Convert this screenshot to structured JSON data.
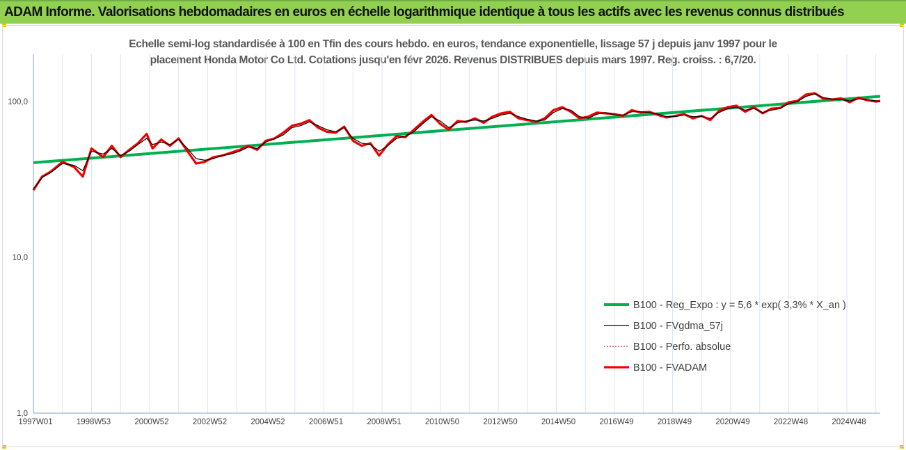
{
  "header": {
    "title": "ADAM Informe. Valorisations hebdomadaires en euros en échelle logarithmique identique à tous les actifs avec les revenus connus distribués"
  },
  "colors": {
    "banner": "#92d050",
    "accent_yellow": "#f0c000",
    "trend": "#00b050",
    "smoothed": "#000000",
    "perf": "#c00000",
    "adam": "#ff0000",
    "grid": "#dde6f0",
    "axis": "#7fa6d6"
  },
  "chart_data": {
    "type": "line",
    "title_lines": [
      "Echelle semi-log standardisée à 100 en Tfin des cours hebdo. en euros, tendance exponentielle, lissage 57 j depuis janv 1997 pour le",
      "placement Honda Motor Co Ltd. Cotations jusqu'en févr 2026. Revenus DISTRIBUES depuis mars 1997.  Reg. croiss. : 6,7/20."
    ],
    "y_scale": "log",
    "ylim": [
      1,
      200
    ],
    "y_ticks": [
      {
        "value": 1,
        "label": "1,0"
      },
      {
        "value": 10,
        "label": "10,0"
      },
      {
        "value": 100,
        "label": "100,0"
      }
    ],
    "x_range": [
      1997.0,
      2026.15
    ],
    "x_ticks": [
      {
        "value": 1997.0,
        "label": "1997W01"
      },
      {
        "value": 1999.0,
        "label": "1998W53"
      },
      {
        "value": 2001.0,
        "label": "2000W52"
      },
      {
        "value": 2003.0,
        "label": "2002W52"
      },
      {
        "value": 2005.0,
        "label": "2004W52"
      },
      {
        "value": 2007.0,
        "label": "2006W51"
      },
      {
        "value": 2009.0,
        "label": "2008W51"
      },
      {
        "value": 2011.0,
        "label": "2010W50"
      },
      {
        "value": 2013.0,
        "label": "2012W50"
      },
      {
        "value": 2015.0,
        "label": "2014W50"
      },
      {
        "value": 2017.0,
        "label": "2016W49"
      },
      {
        "value": 2019.0,
        "label": "2018W49"
      },
      {
        "value": 2021.0,
        "label": "2020W49"
      },
      {
        "value": 2023.0,
        "label": "2022W48"
      },
      {
        "value": 2025.0,
        "label": "2024W48"
      }
    ],
    "grid": "vertical",
    "legend_position": "bottom-right",
    "series": [
      {
        "name": "B100 - Reg_Expo : y = 5,6 * exp( 3,3% *  X_an )",
        "style": "trend",
        "x": [
          1997.0,
          2026.15
        ],
        "y": [
          40.5,
          108.0
        ]
      },
      {
        "name": "B100 - FVgdma_57j",
        "style": "smoothed",
        "x": [
          1997.0,
          1997.3,
          1997.6,
          1998.0,
          1998.4,
          1998.7,
          1999.0,
          1999.4,
          1999.7,
          2000.0,
          2000.3,
          2000.6,
          2000.9,
          2001.1,
          2001.4,
          2001.7,
          2002.0,
          2002.3,
          2002.6,
          2002.9,
          2003.2,
          2003.5,
          2003.8,
          2004.1,
          2004.4,
          2004.7,
          2005.0,
          2005.3,
          2005.6,
          2005.9,
          2006.2,
          2006.5,
          2006.8,
          2007.1,
          2007.4,
          2007.7,
          2008.0,
          2008.3,
          2008.6,
          2008.9,
          2009.2,
          2009.5,
          2009.8,
          2010.1,
          2010.4,
          2010.7,
          2011.0,
          2011.3,
          2011.6,
          2011.9,
          2012.2,
          2012.5,
          2012.8,
          2013.1,
          2013.4,
          2013.7,
          2014.0,
          2014.3,
          2014.6,
          2014.9,
          2015.2,
          2015.5,
          2015.8,
          2016.1,
          2016.4,
          2016.7,
          2017.0,
          2017.3,
          2017.6,
          2017.9,
          2018.2,
          2018.5,
          2018.8,
          2019.1,
          2019.4,
          2019.7,
          2020.0,
          2020.3,
          2020.6,
          2020.9,
          2021.2,
          2021.5,
          2021.8,
          2022.1,
          2022.4,
          2022.7,
          2023.0,
          2023.3,
          2023.6,
          2023.9,
          2024.2,
          2024.5,
          2024.8,
          2025.1,
          2025.4,
          2025.7,
          2026.0,
          2026.15
        ],
        "y": [
          27.5,
          32.5,
          35.0,
          40.0,
          39.0,
          36.0,
          48.0,
          46.0,
          50.0,
          45.0,
          48.0,
          53.0,
          58.0,
          53.0,
          55.0,
          53.0,
          57.0,
          50.0,
          43.0,
          42.0,
          43.0,
          45.0,
          46.0,
          48.0,
          51.0,
          50.0,
          55.0,
          57.5,
          61.0,
          68.0,
          70.0,
          74.0,
          70.0,
          66.0,
          64.0,
          68.0,
          58.0,
          54.0,
          53.0,
          48.0,
          52.0,
          58.0,
          60.0,
          64.0,
          72.0,
          80.0,
          75.0,
          68.0,
          73.0,
          75.0,
          76.0,
          75.0,
          78.0,
          82.0,
          84.0,
          80.0,
          77.0,
          75.0,
          76.0,
          85.0,
          90.0,
          88.0,
          80.0,
          78.0,
          83.0,
          85.0,
          82.0,
          82.0,
          86.0,
          86.0,
          85.0,
          83.0,
          80.0,
          80.0,
          82.0,
          80.0,
          80.0,
          78.0,
          85.0,
          90.0,
          92.0,
          88.0,
          90.0,
          85.0,
          88.0,
          90.0,
          97.0,
          100.0,
          108.0,
          112.0,
          106.0,
          104.0,
          103.0,
          101.0,
          104.0,
          103.0,
          101.0,
          100.0
        ]
      },
      {
        "name": "B100 - Perfo. absolue",
        "style": "perf",
        "x": [
          1997.0,
          1997.3,
          1997.6,
          1998.0,
          1998.4,
          1998.7,
          1999.0,
          1999.4,
          1999.7,
          2000.0,
          2000.3,
          2000.6,
          2000.9,
          2001.1,
          2001.4,
          2001.7,
          2002.0,
          2002.3,
          2002.6,
          2002.9,
          2003.2,
          2003.5,
          2003.8,
          2004.1,
          2004.4,
          2004.7,
          2005.0,
          2005.3,
          2005.6,
          2005.9,
          2006.2,
          2006.5,
          2006.8,
          2007.1,
          2007.4,
          2007.7,
          2008.0,
          2008.3,
          2008.6,
          2008.9,
          2009.2,
          2009.5,
          2009.8,
          2010.1,
          2010.4,
          2010.7,
          2011.0,
          2011.3,
          2011.6,
          2011.9,
          2012.2,
          2012.5,
          2012.8,
          2013.1,
          2013.4,
          2013.7,
          2014.0,
          2014.3,
          2014.6,
          2014.9,
          2015.2,
          2015.5,
          2015.8,
          2016.1,
          2016.4,
          2016.7,
          2017.0,
          2017.3,
          2017.6,
          2017.9,
          2018.2,
          2018.5,
          2018.8,
          2019.1,
          2019.4,
          2019.7,
          2020.0,
          2020.3,
          2020.6,
          2020.9,
          2021.2,
          2021.5,
          2021.8,
          2022.1,
          2022.4,
          2022.7,
          2023.0,
          2023.3,
          2023.6,
          2023.9,
          2024.2,
          2024.5,
          2024.8,
          2025.1,
          2025.4,
          2025.7,
          2026.0,
          2026.15
        ],
        "y": [
          27.0,
          33.0,
          35.5,
          41.0,
          38.0,
          33.0,
          50.0,
          44.0,
          52.0,
          44.0,
          49.0,
          54.0,
          62.0,
          50.0,
          57.0,
          52.0,
          58.0,
          48.0,
          40.0,
          41.0,
          44.0,
          45.0,
          47.0,
          49.0,
          52.0,
          49.0,
          56.0,
          58.0,
          63.0,
          70.0,
          72.0,
          76.0,
          68.0,
          64.0,
          63.0,
          69.0,
          56.0,
          52.0,
          54.0,
          45.0,
          53.0,
          60.0,
          59.0,
          66.0,
          74.0,
          82.0,
          72.0,
          66.0,
          75.0,
          74.0,
          78.0,
          73.0,
          80.0,
          84.0,
          86.0,
          78.0,
          76.0,
          74.0,
          78.0,
          88.0,
          92.0,
          86.0,
          78.0,
          80.0,
          85.0,
          84.0,
          83.0,
          81.0,
          88.0,
          85.0,
          86.0,
          82.0,
          79.0,
          81.0,
          83.0,
          78.0,
          81.0,
          76.0,
          87.0,
          92.0,
          94.0,
          86.0,
          92.0,
          84.0,
          90.0,
          91.0,
          99.0,
          101.0,
          111.0,
          113.0,
          104.0,
          103.0,
          105.0,
          99.0,
          106.0,
          102.0,
          100.0,
          101.0
        ]
      },
      {
        "name": "B100 - FVADAM",
        "style": "adam",
        "x": [
          1997.0,
          1997.3,
          1997.6,
          1998.0,
          1998.4,
          1998.7,
          1999.0,
          1999.4,
          1999.7,
          2000.0,
          2000.3,
          2000.6,
          2000.9,
          2001.1,
          2001.4,
          2001.7,
          2002.0,
          2002.3,
          2002.6,
          2002.9,
          2003.2,
          2003.5,
          2003.8,
          2004.1,
          2004.4,
          2004.7,
          2005.0,
          2005.3,
          2005.6,
          2005.9,
          2006.2,
          2006.5,
          2006.8,
          2007.1,
          2007.4,
          2007.7,
          2008.0,
          2008.3,
          2008.6,
          2008.9,
          2009.2,
          2009.5,
          2009.8,
          2010.1,
          2010.4,
          2010.7,
          2011.0,
          2011.3,
          2011.6,
          2011.9,
          2012.2,
          2012.5,
          2012.8,
          2013.1,
          2013.4,
          2013.7,
          2014.0,
          2014.3,
          2014.6,
          2014.9,
          2015.2,
          2015.5,
          2015.8,
          2016.1,
          2016.4,
          2016.7,
          2017.0,
          2017.3,
          2017.6,
          2017.9,
          2018.2,
          2018.5,
          2018.8,
          2019.1,
          2019.4,
          2019.7,
          2020.0,
          2020.3,
          2020.6,
          2020.9,
          2021.2,
          2021.5,
          2021.8,
          2022.1,
          2022.4,
          2022.7,
          2023.0,
          2023.3,
          2023.6,
          2023.9,
          2024.2,
          2024.5,
          2024.8,
          2025.1,
          2025.4,
          2025.7,
          2026.0,
          2026.15
        ],
        "y": [
          27.0,
          33.0,
          35.5,
          41.0,
          38.0,
          33.0,
          50.0,
          44.0,
          52.0,
          44.0,
          49.0,
          54.0,
          62.0,
          50.0,
          57.0,
          52.0,
          58.0,
          48.0,
          40.0,
          41.0,
          44.0,
          45.0,
          47.0,
          49.0,
          52.0,
          49.0,
          56.0,
          58.0,
          63.0,
          70.0,
          72.0,
          76.0,
          68.0,
          64.0,
          63.0,
          69.0,
          56.0,
          52.0,
          54.0,
          45.0,
          53.0,
          60.0,
          59.0,
          66.0,
          74.0,
          82.0,
          72.0,
          66.0,
          75.0,
          74.0,
          78.0,
          73.0,
          80.0,
          84.0,
          86.0,
          78.0,
          76.0,
          74.0,
          78.0,
          88.0,
          92.0,
          86.0,
          78.0,
          80.0,
          85.0,
          84.0,
          83.0,
          81.0,
          88.0,
          85.0,
          86.0,
          82.0,
          79.0,
          81.0,
          83.0,
          78.0,
          81.0,
          76.0,
          87.0,
          92.0,
          94.0,
          86.0,
          92.0,
          84.0,
          90.0,
          91.0,
          99.0,
          101.0,
          111.0,
          113.0,
          104.0,
          103.0,
          105.0,
          99.0,
          106.0,
          102.0,
          100.0,
          101.0
        ]
      }
    ]
  }
}
